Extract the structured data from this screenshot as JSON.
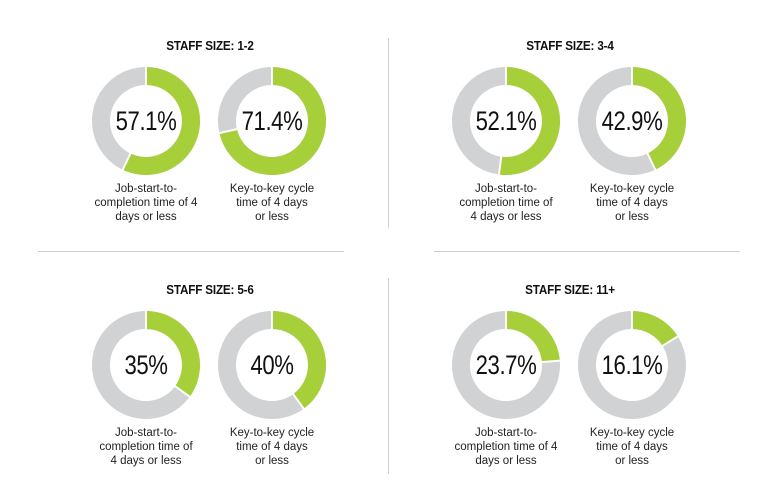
{
  "colors": {
    "fill": "#a6cf3a",
    "track": "#d1d2d4"
  },
  "chart_data": [
    {
      "type": "pie",
      "title": "STAFF SIZE: 1-2",
      "slices": [
        {
          "label": "Job-start-to-completion time of 4 days or less",
          "value": 57.1,
          "display": "57.1%",
          "caption_lines": [
            "Job-start-to-",
            "completion time of 4",
            "days or less"
          ]
        },
        {
          "label": "Key-to-key cycle time of 4 days or less",
          "value": 71.4,
          "display": "71.4%",
          "caption_lines": [
            "Key-to-key cycle",
            "time of 4 days",
            "or less"
          ]
        }
      ]
    },
    {
      "type": "pie",
      "title": "STAFF SIZE: 3-4",
      "slices": [
        {
          "label": "Job-start-to-completion time of 4 days or less",
          "value": 52.1,
          "display": "52.1%",
          "caption_lines": [
            "Job-start-to-",
            "completion time of",
            "4 days or less"
          ]
        },
        {
          "label": "Key-to-key cycle time of 4 days or less",
          "value": 42.9,
          "display": "42.9%",
          "caption_lines": [
            "Key-to-key cycle",
            "time of 4 days",
            "or less"
          ]
        }
      ]
    },
    {
      "type": "pie",
      "title": "STAFF SIZE: 5-6",
      "slices": [
        {
          "label": "Job-start-to-completion time of 4 days or less",
          "value": 35,
          "display": "35%",
          "caption_lines": [
            "Job-start-to-",
            "completion time of",
            "4 days or less"
          ]
        },
        {
          "label": "Key-to-key cycle time of 4 days or less",
          "value": 40,
          "display": "40%",
          "caption_lines": [
            "Key-to-key cycle",
            "time of 4 days",
            "or less"
          ]
        }
      ]
    },
    {
      "type": "pie",
      "title": "STAFF SIZE: 11+",
      "slices": [
        {
          "label": "Job-start-to-completion time of 4 days or less",
          "value": 23.7,
          "display": "23.7%",
          "caption_lines": [
            "Job-start-to-",
            "completion time of 4",
            "days or less"
          ]
        },
        {
          "label": "Key-to-key cycle time of 4 days or less",
          "value": 16.1,
          "display": "16.1%",
          "caption_lines": [
            "Key-to-key cycle",
            "time of 4 days",
            "or less"
          ]
        }
      ]
    }
  ]
}
